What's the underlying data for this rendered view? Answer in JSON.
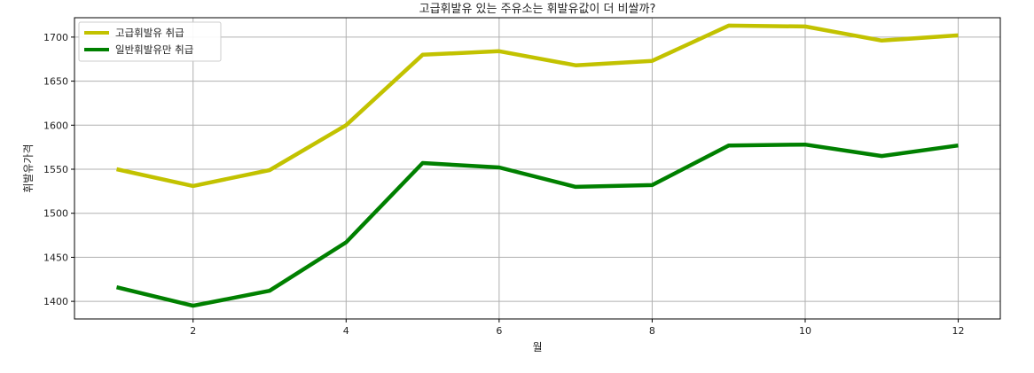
{
  "chart_data": {
    "type": "line",
    "title": "고급휘발유 있는 주유소는 휘발유값이 더 비쌀까?",
    "xlabel": "월",
    "ylabel": "휘발유가격",
    "x": [
      1,
      2,
      3,
      4,
      5,
      6,
      7,
      8,
      9,
      10,
      11,
      12
    ],
    "series": [
      {
        "name": "고급휘발유 취급",
        "color": "#c2c200",
        "values": [
          1550,
          1531,
          1549,
          1600,
          1680,
          1684,
          1668,
          1673,
          1713,
          1712,
          1696,
          1702
        ]
      },
      {
        "name": "일반휘발유만 취급",
        "color": "#008000",
        "values": [
          1416,
          1395,
          1412,
          1467,
          1557,
          1552,
          1530,
          1532,
          1577,
          1578,
          1565,
          1577
        ]
      }
    ],
    "xlim": [
      0.45,
      12.55
    ],
    "ylim": [
      1380,
      1722
    ],
    "xticks": [
      2,
      4,
      6,
      8,
      10,
      12
    ],
    "yticks": [
      1400,
      1450,
      1500,
      1550,
      1600,
      1650,
      1700
    ],
    "grid": true,
    "legend_position": "upper-left",
    "grid_color": "#b0b0b0",
    "axis_color": "#000000"
  }
}
